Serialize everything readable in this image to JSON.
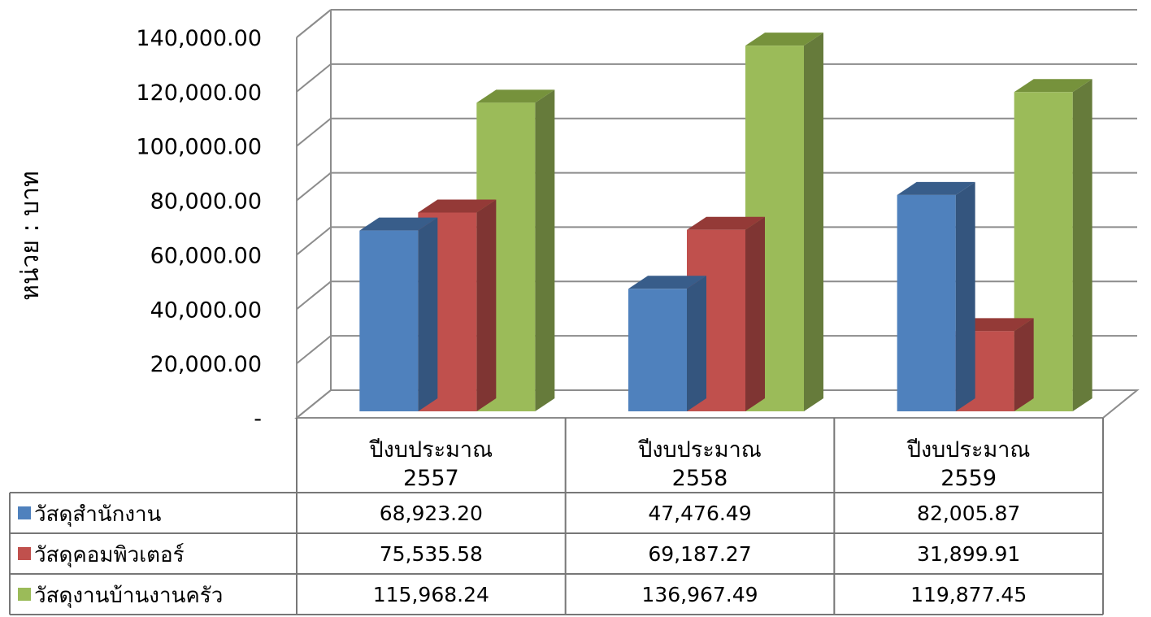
{
  "chart_data": {
    "type": "bar",
    "ylabel": "หน่วย : บาท",
    "ylim": [
      0,
      140000
    ],
    "yticks": [
      0,
      20000,
      40000,
      60000,
      80000,
      100000,
      120000,
      140000
    ],
    "ytick_labels": [
      "-",
      "20,000.00",
      "40,000.00",
      "60,000.00",
      "80,000.00",
      "100,000.00",
      "120,000.00",
      "140,000.00"
    ],
    "grid": true,
    "legend": "data-table",
    "categories": [
      {
        "line1": "ปีงบประมาณ",
        "line2": "2557"
      },
      {
        "line1": "ปีงบประมาณ",
        "line2": "2558"
      },
      {
        "line1": "ปีงบประมาณ",
        "line2": "2559"
      }
    ],
    "series": [
      {
        "name": "วัสดุสำนักงาน",
        "color": "#4F81BD",
        "side_color": "#34557E",
        "top_color": "#385D8A",
        "values": [
          68923.2,
          47476.49,
          82005.87
        ],
        "labels": [
          "68,923.20",
          "47,476.49",
          "82,005.87"
        ]
      },
      {
        "name": "วัสดุคอมพิวเตอร์",
        "color": "#C0504D",
        "side_color": "#7F3533",
        "top_color": "#943A37",
        "values": [
          75535.58,
          69187.27,
          31899.91
        ],
        "labels": [
          "75,535.58",
          "69,187.27",
          "31,899.91"
        ]
      },
      {
        "name": "วัสดุงานบ้านงานครัว",
        "color": "#9BBB59",
        "side_color": "#667B3B",
        "top_color": "#76923C",
        "values": [
          115968.24,
          136967.49,
          119877.45
        ],
        "labels": [
          "115,968.24",
          "136,967.49",
          "119,877.45"
        ]
      }
    ]
  }
}
